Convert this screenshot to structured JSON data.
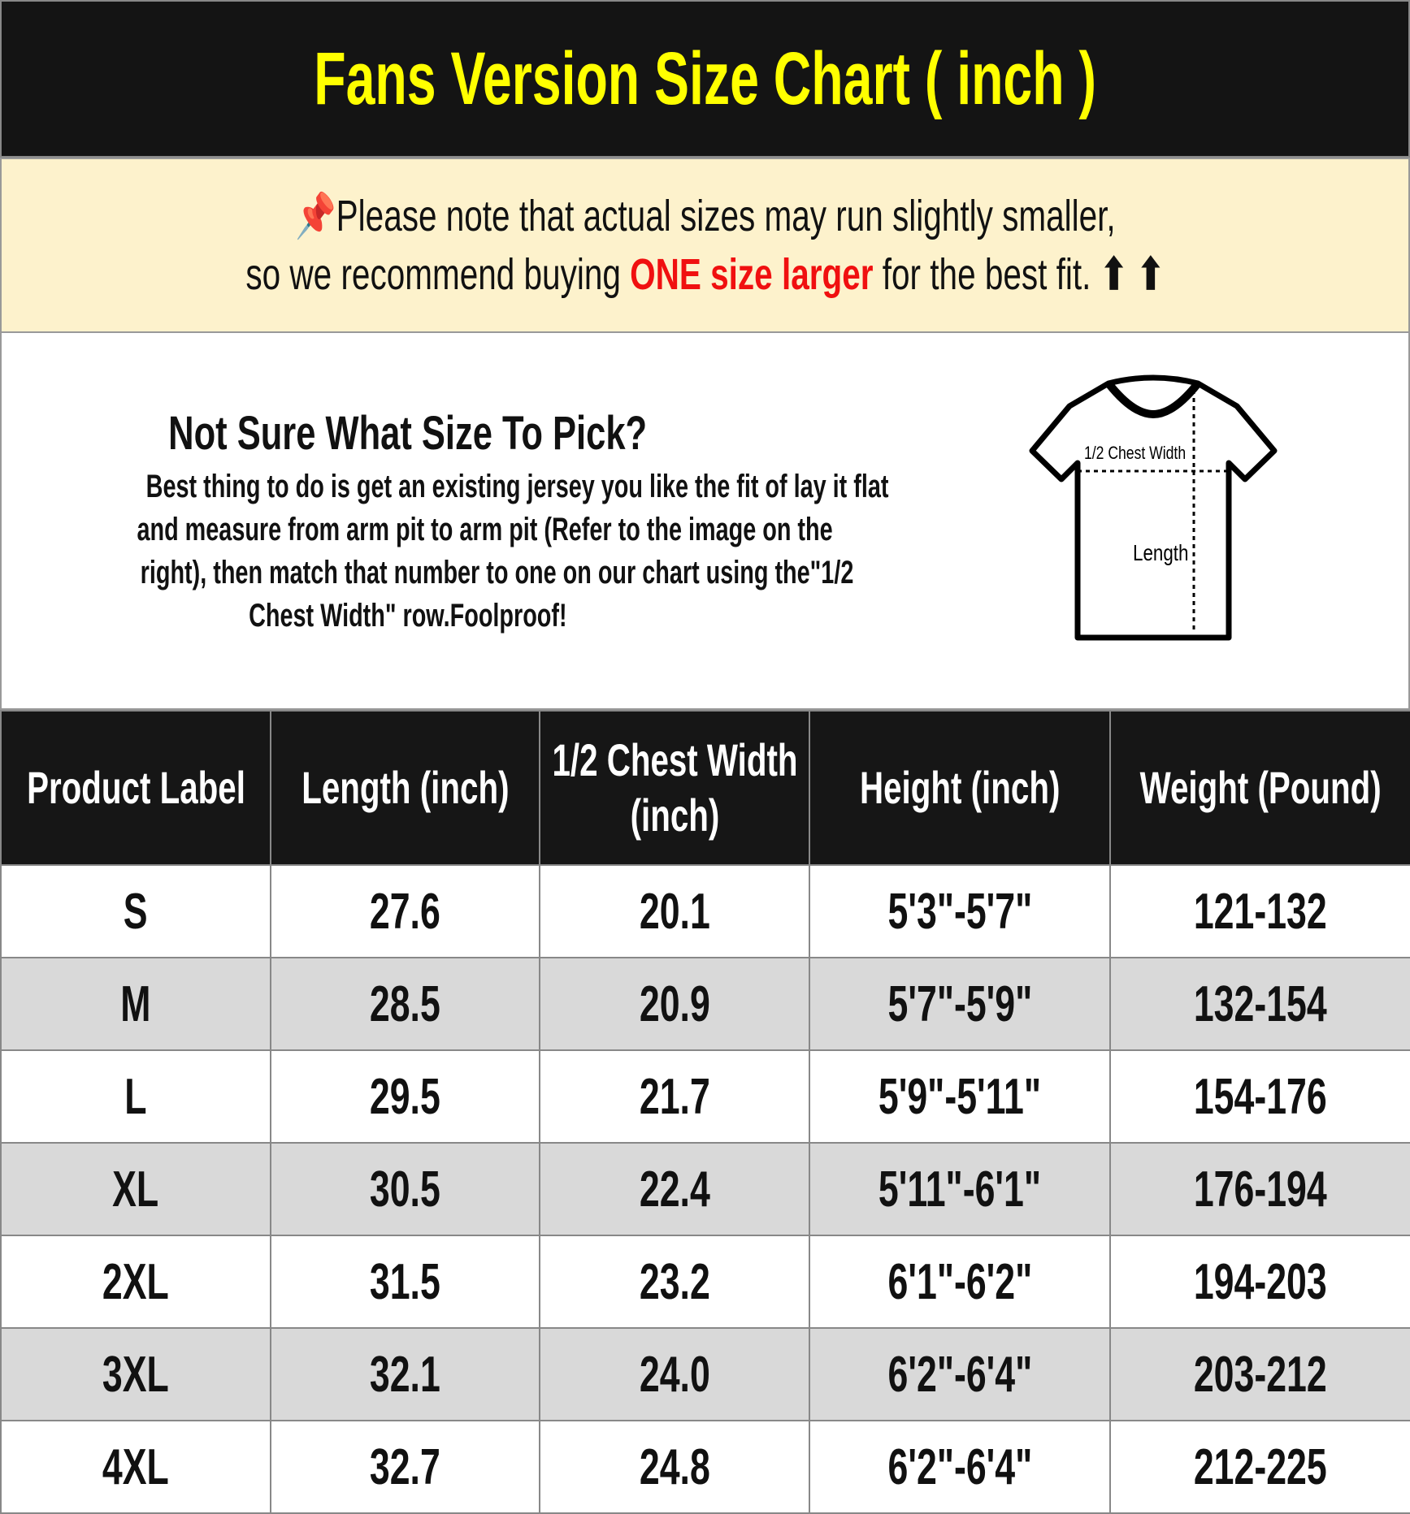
{
  "title": "Fans Version Size Chart ( inch )",
  "notice": {
    "icon": "pushpin-icon",
    "line1": "Please note that actual sizes may run slightly smaller,",
    "line2_before": "so we recommend buying ",
    "line2_highlight": "ONE size larger",
    "line2_after": " for the best fit.",
    "arrows": "⬆ ⬆",
    "highlight_color": "#f01010"
  },
  "info": {
    "heading": "Not Sure What Size To Pick?",
    "lines": [
      "Best thing to do is get an existing jersey you like the fit of lay it flat",
      "and measure from arm pit to arm pit (Refer to the image on the",
      "right), then match that number to one on our chart using the\"1/2",
      "Chest Width\" row.Foolproof!"
    ],
    "diagram": {
      "chest_label": "1/2 Chest Width",
      "length_label": "Length"
    }
  },
  "table": {
    "headers": [
      "Product Label",
      "Length (inch)",
      "1/2 Chest Width (inch)",
      "Height (inch)",
      "Weight (Pound)"
    ],
    "rows": [
      [
        "S",
        "27.6",
        "20.1",
        "5'3\"-5'7\"",
        "121-132"
      ],
      [
        "M",
        "28.5",
        "20.9",
        "5'7\"-5'9\"",
        "132-154"
      ],
      [
        "L",
        "29.5",
        "21.7",
        "5'9\"-5'11\"",
        "154-176"
      ],
      [
        "XL",
        "30.5",
        "22.4",
        "5'11\"-6'1\"",
        "176-194"
      ],
      [
        "2XL",
        "31.5",
        "23.2",
        "6'1\"-6'2\"",
        "194-203"
      ],
      [
        "3XL",
        "32.1",
        "24.0",
        "6'2\"-6'4\"",
        "203-212"
      ],
      [
        "4XL",
        "32.7",
        "24.8",
        "6'2\"-6'4\"",
        "212-225"
      ]
    ]
  },
  "colors": {
    "title_bg": "#141414",
    "title_text": "#ffff00",
    "notice_bg": "#fdf2cc",
    "alt_row": "#d9d9d9"
  }
}
